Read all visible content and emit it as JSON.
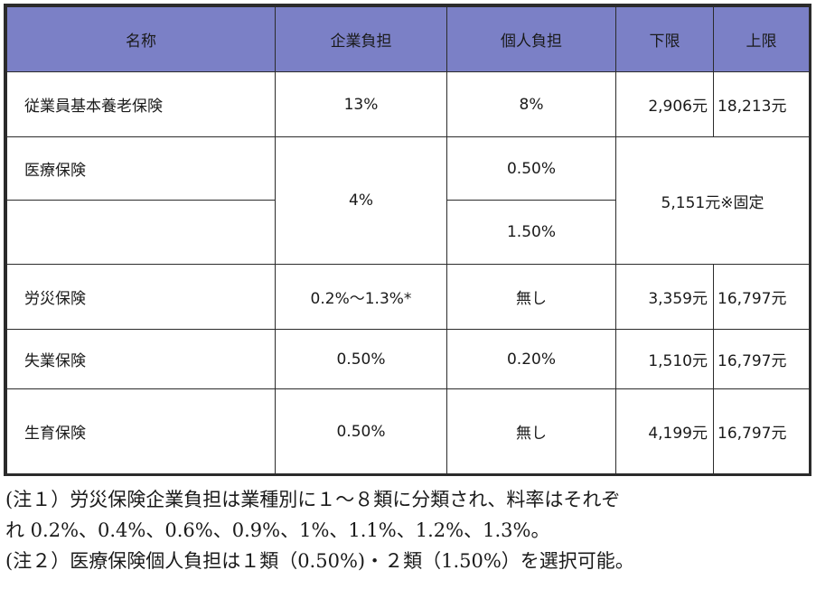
{
  "table": {
    "header_color": "#7b80c6",
    "headers": {
      "name": "名称",
      "employer": "企業負担",
      "employee": "個人負担",
      "min": "下限",
      "max": "上限"
    },
    "rows": {
      "pension": {
        "name": "従業員基本養老保険",
        "employer": "13%",
        "employee": "8%",
        "min": "2,906元",
        "max": "18,213元"
      },
      "medical": {
        "name": "医療保険",
        "employer": "4%",
        "employee_1": "0.50%",
        "employee_2": "1.50%",
        "limit": "5,151元※固定"
      },
      "injury": {
        "name": "労災保険",
        "employer": "0.2%～1.3%*",
        "employee": "無し",
        "min": "3,359元",
        "max": "16,797元"
      },
      "unemployment": {
        "name": "失業保険",
        "employer": "0.50%",
        "employee": "0.20%",
        "min": "1,510元",
        "max": "16,797元"
      },
      "maternity": {
        "name": "生育保険",
        "employer": "0.50%",
        "employee": "無し",
        "min": "4,199元",
        "max": "16,797元"
      }
    }
  },
  "notes": {
    "note1_line1": "(注１）労災保険企業負担は業種別に１～８類に分類され、料率はそれぞ",
    "note1_line2": "れ 0.2%、0.4%、0.6%、0.9%、1%、1.1%、1.2%、1.3%。",
    "note2": "(注２）医療保険個人負担は１類（0.50%)・２類（1.50%）を選択可能。"
  }
}
